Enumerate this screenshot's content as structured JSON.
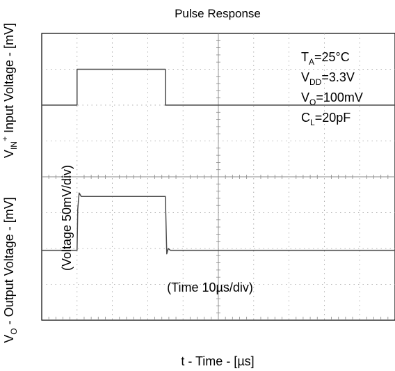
{
  "chart_data": {
    "type": "line",
    "title": "Pulse Response",
    "xlabel": "t - Time - [µs]",
    "ylabel_top": {
      "prefix": "V",
      "sub": "IN",
      "sup": "+",
      "rest": " Input Voltage - [mV]"
    },
    "ylabel_bottom": {
      "prefix": "V",
      "sub": "O",
      "rest": " - Output Voltage - [mV]"
    },
    "x_scale_annotation": "(Time 10µs/div)",
    "y_scale_annotation": "(Voltage 50mV/div)",
    "conditions": [
      {
        "main": "T",
        "sub": "A",
        "rest": "=25°C"
      },
      {
        "main": "V",
        "sub": "DD",
        "rest": "=3.3V"
      },
      {
        "main": "V",
        "sub": "O",
        "rest": "=100mV"
      },
      {
        "main": "C",
        "sub": "L",
        "rest": "=20pF"
      }
    ],
    "xlim_div": [
      0,
      10
    ],
    "ylim_div": [
      0,
      8
    ],
    "grid": true,
    "series": [
      {
        "role": "input",
        "x": [
          0,
          1.0,
          1.0,
          3.5,
          3.5,
          10
        ],
        "y": [
          6.0,
          6.0,
          7.0,
          7.0,
          6.0,
          6.0
        ]
      },
      {
        "role": "output",
        "x": [
          0,
          1.0,
          1.02,
          1.06,
          1.12,
          1.2,
          3.5,
          3.54,
          3.58,
          3.64,
          10
        ],
        "y": [
          1.95,
          1.95,
          3.1,
          3.55,
          3.45,
          3.45,
          3.45,
          1.85,
          2.0,
          1.95,
          1.95
        ]
      }
    ]
  }
}
